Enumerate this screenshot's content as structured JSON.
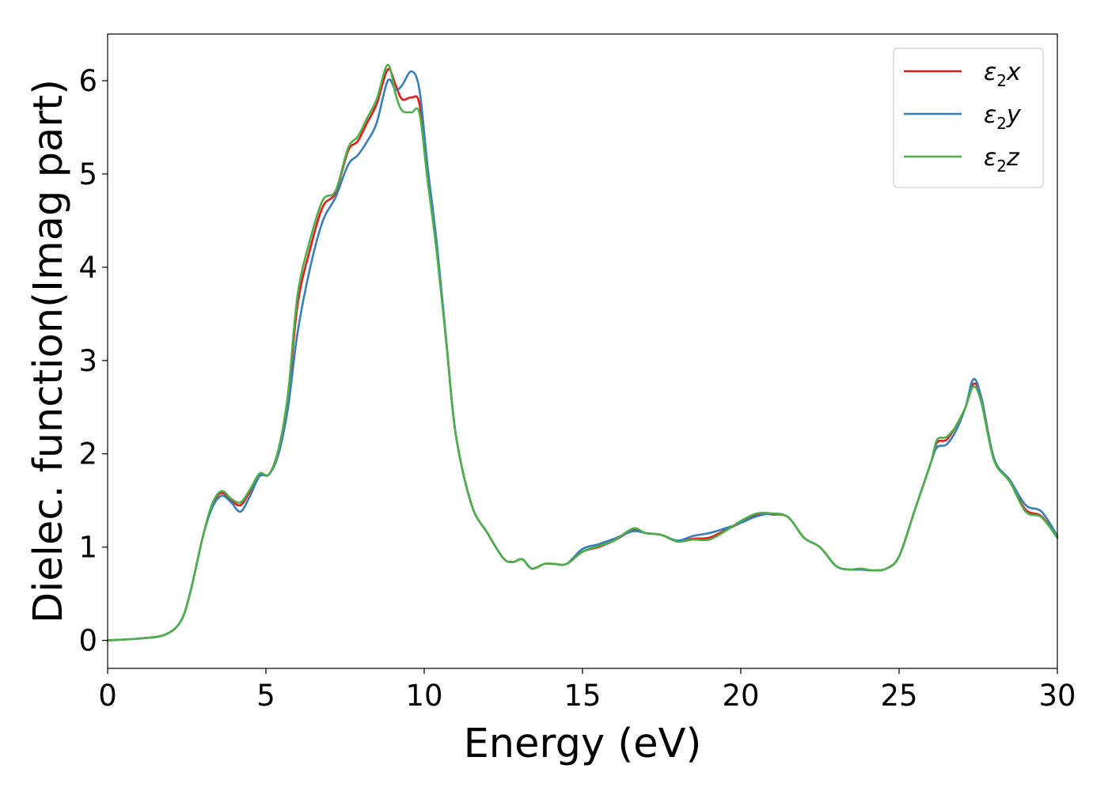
{
  "chart_data": {
    "type": "line",
    "title": "",
    "xlabel": "Energy (eV)",
    "ylabel": "Dielec. function(Imag part)",
    "xlim": [
      0,
      30
    ],
    "ylim": [
      -0.3,
      6.5
    ],
    "xticks": [
      0,
      5,
      10,
      15,
      20,
      25,
      30
    ],
    "yticks": [
      0,
      1,
      2,
      3,
      4,
      5,
      6
    ],
    "grid": false,
    "legend_position": "top-right",
    "series": [
      {
        "name": "ε2x",
        "label_main": "ε",
        "label_sub": "2",
        "label_var": "x",
        "color": "#e41a1c",
        "x": [
          0,
          1,
          1.8,
          2.3,
          2.6,
          3.0,
          3.3,
          3.6,
          3.9,
          4.2,
          4.5,
          4.8,
          5.1,
          5.4,
          5.7,
          6.0,
          6.4,
          6.8,
          7.2,
          7.6,
          7.9,
          8.2,
          8.5,
          8.85,
          9.1,
          9.3,
          9.6,
          9.85,
          10.1,
          10.4,
          10.7,
          11.0,
          11.5,
          12.0,
          12.5,
          12.8,
          13.1,
          13.4,
          13.8,
          14.1,
          14.5,
          15.0,
          15.5,
          16.0,
          16.6,
          17.0,
          17.5,
          18.0,
          18.5,
          19.0,
          19.5,
          20.0,
          20.5,
          21.0,
          21.5,
          22.0,
          22.5,
          23.0,
          23.4,
          23.8,
          24.2,
          24.6,
          25.0,
          25.5,
          26.0,
          26.2,
          26.5,
          26.8,
          27.1,
          27.35,
          27.6,
          28.0,
          28.5,
          29.0,
          29.5,
          30.0
        ],
        "y": [
          0,
          0.02,
          0.06,
          0.2,
          0.5,
          1.1,
          1.45,
          1.58,
          1.5,
          1.45,
          1.6,
          1.78,
          1.78,
          2.05,
          2.6,
          3.6,
          4.2,
          4.65,
          4.8,
          5.25,
          5.35,
          5.55,
          5.75,
          6.12,
          5.95,
          5.8,
          5.82,
          5.75,
          5.0,
          4.2,
          3.2,
          2.2,
          1.45,
          1.15,
          0.88,
          0.84,
          0.87,
          0.77,
          0.82,
          0.82,
          0.82,
          0.95,
          1.0,
          1.07,
          1.18,
          1.15,
          1.13,
          1.06,
          1.09,
          1.1,
          1.18,
          1.26,
          1.35,
          1.35,
          1.32,
          1.1,
          1.0,
          0.8,
          0.76,
          0.76,
          0.75,
          0.77,
          0.9,
          1.4,
          1.9,
          2.12,
          2.15,
          2.3,
          2.5,
          2.75,
          2.6,
          1.95,
          1.7,
          1.4,
          1.33,
          1.1
        ]
      },
      {
        "name": "ε2y",
        "label_main": "ε",
        "label_sub": "2",
        "label_var": "y",
        "color": "#377eb8",
        "x": [
          0,
          1,
          1.8,
          2.3,
          2.6,
          3.0,
          3.3,
          3.6,
          3.9,
          4.2,
          4.5,
          4.8,
          5.1,
          5.4,
          5.7,
          6.0,
          6.4,
          6.8,
          7.2,
          7.6,
          7.9,
          8.2,
          8.5,
          8.85,
          9.1,
          9.3,
          9.6,
          9.85,
          10.1,
          10.4,
          10.7,
          11.0,
          11.5,
          12.0,
          12.5,
          12.8,
          13.1,
          13.4,
          13.8,
          14.1,
          14.5,
          15.0,
          15.5,
          16.0,
          16.6,
          17.0,
          17.5,
          18.0,
          18.5,
          19.0,
          19.5,
          20.0,
          20.5,
          21.0,
          21.5,
          22.0,
          22.5,
          23.0,
          23.4,
          23.8,
          24.2,
          24.6,
          25.0,
          25.5,
          26.0,
          26.2,
          26.5,
          26.8,
          27.1,
          27.35,
          27.6,
          28.0,
          28.5,
          29.0,
          29.5,
          30.0
        ],
        "y": [
          0,
          0.02,
          0.06,
          0.2,
          0.5,
          1.1,
          1.42,
          1.55,
          1.48,
          1.38,
          1.55,
          1.76,
          1.78,
          2.0,
          2.5,
          3.3,
          4.0,
          4.5,
          4.75,
          5.1,
          5.2,
          5.35,
          5.55,
          6.0,
          5.9,
          5.95,
          6.1,
          5.9,
          5.1,
          4.25,
          3.2,
          2.2,
          1.45,
          1.15,
          0.88,
          0.84,
          0.87,
          0.77,
          0.82,
          0.82,
          0.82,
          0.98,
          1.03,
          1.09,
          1.17,
          1.15,
          1.13,
          1.07,
          1.12,
          1.15,
          1.2,
          1.26,
          1.33,
          1.36,
          1.32,
          1.1,
          1.0,
          0.8,
          0.76,
          0.76,
          0.75,
          0.77,
          0.9,
          1.4,
          1.9,
          2.07,
          2.1,
          2.25,
          2.5,
          2.8,
          2.6,
          1.95,
          1.72,
          1.45,
          1.38,
          1.12
        ]
      },
      {
        "name": "ε2z",
        "label_main": "ε",
        "label_sub": "2",
        "label_var": "z",
        "color": "#4daf4a",
        "x": [
          0,
          1,
          1.8,
          2.3,
          2.6,
          3.0,
          3.3,
          3.6,
          3.9,
          4.2,
          4.5,
          4.8,
          5.1,
          5.4,
          5.7,
          6.0,
          6.4,
          6.8,
          7.2,
          7.6,
          7.9,
          8.2,
          8.5,
          8.85,
          9.1,
          9.3,
          9.6,
          9.85,
          10.1,
          10.4,
          10.7,
          11.0,
          11.5,
          12.0,
          12.5,
          12.8,
          13.1,
          13.4,
          13.8,
          14.1,
          14.5,
          15.0,
          15.5,
          16.0,
          16.6,
          17.0,
          17.5,
          18.0,
          18.5,
          19.0,
          19.5,
          20.0,
          20.5,
          21.0,
          21.5,
          22.0,
          22.5,
          23.0,
          23.4,
          23.8,
          24.2,
          24.6,
          25.0,
          25.5,
          26.0,
          26.2,
          26.5,
          26.8,
          27.1,
          27.35,
          27.6,
          28.0,
          28.5,
          29.0,
          29.5,
          30.0
        ],
        "y": [
          0,
          0.02,
          0.06,
          0.2,
          0.5,
          1.1,
          1.46,
          1.6,
          1.52,
          1.48,
          1.62,
          1.79,
          1.78,
          2.05,
          2.65,
          3.7,
          4.3,
          4.72,
          4.82,
          5.28,
          5.4,
          5.6,
          5.8,
          6.17,
          5.85,
          5.68,
          5.66,
          5.65,
          4.95,
          4.15,
          3.18,
          2.2,
          1.45,
          1.15,
          0.88,
          0.84,
          0.87,
          0.77,
          0.82,
          0.82,
          0.82,
          0.95,
          1.01,
          1.07,
          1.2,
          1.15,
          1.13,
          1.06,
          1.08,
          1.08,
          1.17,
          1.28,
          1.36,
          1.36,
          1.32,
          1.1,
          1.0,
          0.8,
          0.76,
          0.77,
          0.75,
          0.77,
          0.9,
          1.4,
          1.9,
          2.15,
          2.18,
          2.3,
          2.5,
          2.72,
          2.55,
          1.93,
          1.7,
          1.38,
          1.32,
          1.1
        ]
      }
    ]
  }
}
